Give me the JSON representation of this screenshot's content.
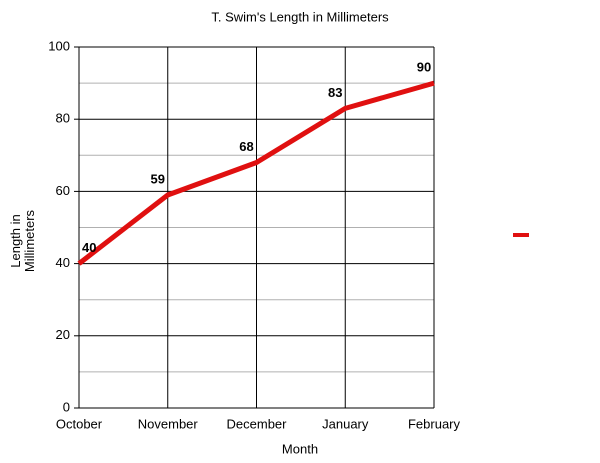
{
  "chart_data": {
    "type": "line",
    "title": "T. Swim's Length in Millimeters",
    "xlabel": "Month",
    "ylabel": "Length in Millimeters",
    "categories": [
      "October",
      "November",
      "December",
      "January",
      "February"
    ],
    "series": [
      {
        "color": "#e01010",
        "values": [
          40,
          59,
          68,
          83,
          90
        ]
      }
    ],
    "ylim": [
      0,
      100
    ],
    "yticks": [
      0,
      20,
      40,
      60,
      80,
      100
    ],
    "minor_yticks": [
      10,
      30,
      50,
      70,
      90
    ],
    "grid": true,
    "legend": "right"
  }
}
